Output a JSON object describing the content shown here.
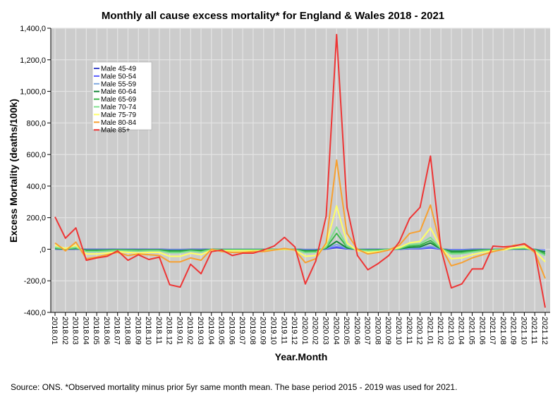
{
  "chart_data": {
    "type": "line",
    "title": "Monthly all cause excess mortality* for England & Wales 2018 - 2021",
    "xlabel": "Year.Month",
    "ylabel": "Excess Mortality (deaths/100k)",
    "ylim": [
      -400,
      1400
    ],
    "yticks": [
      "-400,0",
      "-200,0",
      ",0",
      "200,0",
      "400,0",
      "600,0",
      "800,0",
      "1,000,0",
      "1,200,0",
      "1,400,0"
    ],
    "ytick_values": [
      -400,
      -200,
      0,
      200,
      400,
      600,
      800,
      1000,
      1200,
      1400
    ],
    "grid": true,
    "legend_position": "top-left",
    "categories": [
      "2018.01",
      "2018.02",
      "2018.03",
      "2018.04",
      "2018.05",
      "2018.06",
      "2018.07",
      "2018.08",
      "2018.09",
      "2018.10",
      "2018.11",
      "2018.12",
      "2019.01",
      "2019.02",
      "2019.03",
      "2019.04",
      "2019.05",
      "2019.06",
      "2019.07",
      "2019.08",
      "2019.09",
      "2019.10",
      "2019.11",
      "2019.12",
      "2020.01",
      "2020.02",
      "2020.03",
      "2020.04",
      "2020.05",
      "2020.06",
      "2020.07",
      "2020.08",
      "2020.09",
      "2020.10",
      "2020.11",
      "2020.12",
      "2021.01",
      "2021.02",
      "2021.03",
      "2021.04",
      "2021.05",
      "2021.06",
      "2021.07",
      "2021.08",
      "2021.09",
      "2021.10",
      "2021.11",
      "2021.12"
    ],
    "series": [
      {
        "name": "Male 45-49",
        "color": "#3a44c8",
        "values": [
          1,
          0,
          1,
          -1,
          -1,
          -1,
          0,
          0,
          -1,
          0,
          0,
          -2,
          -2,
          -1,
          -1,
          0,
          0,
          0,
          0,
          0,
          0,
          0,
          0,
          0,
          -2,
          -2,
          1,
          10,
          2,
          0,
          0,
          0,
          0,
          0,
          3,
          3,
          8,
          0,
          -3,
          -3,
          -1,
          0,
          0,
          0,
          0,
          1,
          0,
          -15
        ]
      },
      {
        "name": "Male 50-54",
        "color": "#5a5cff",
        "values": [
          2,
          0,
          2,
          -2,
          -2,
          -2,
          -1,
          -1,
          -2,
          -1,
          -1,
          -3,
          -3,
          -2,
          -2,
          0,
          0,
          0,
          0,
          0,
          0,
          0,
          0,
          0,
          -3,
          -3,
          2,
          15,
          3,
          0,
          -1,
          -1,
          0,
          1,
          4,
          5,
          10,
          1,
          -4,
          -4,
          -2,
          -1,
          0,
          0,
          1,
          1,
          -1,
          -6
        ]
      },
      {
        "name": "Male 55-59",
        "color": "#7fa8e0",
        "values": [
          3,
          1,
          3,
          -4,
          -4,
          -3,
          -2,
          -2,
          -3,
          -2,
          -2,
          -5,
          -5,
          -3,
          -4,
          0,
          -1,
          -1,
          -1,
          -1,
          -1,
          0,
          0,
          0,
          -5,
          -5,
          4,
          30,
          5,
          -1,
          -2,
          -2,
          0,
          1,
          7,
          9,
          20,
          1,
          -7,
          -7,
          -4,
          -2,
          -1,
          0,
          1,
          2,
          -1,
          -10
        ]
      },
      {
        "name": "Male 60-64",
        "color": "#16863a",
        "values": [
          5,
          1,
          5,
          -6,
          -6,
          -5,
          -3,
          -4,
          -5,
          -4,
          -4,
          -9,
          -9,
          -5,
          -7,
          -1,
          -2,
          -2,
          -2,
          -2,
          -2,
          -1,
          0,
          -1,
          -9,
          -8,
          6,
          50,
          8,
          -2,
          -4,
          -3,
          -1,
          2,
          12,
          15,
          40,
          2,
          -12,
          -12,
          -7,
          -4,
          -2,
          -1,
          2,
          3,
          -2,
          -18
        ]
      },
      {
        "name": "Male 65-69",
        "color": "#3cb84a",
        "values": [
          8,
          2,
          8,
          -10,
          -10,
          -8,
          -5,
          -7,
          -8,
          -7,
          -7,
          -15,
          -15,
          -8,
          -12,
          -1,
          -3,
          -3,
          -3,
          -3,
          -3,
          -1,
          0,
          -1,
          -15,
          -14,
          10,
          100,
          14,
          -3,
          -7,
          -5,
          -1,
          3,
          20,
          25,
          55,
          3,
          -20,
          -20,
          -12,
          -7,
          -3,
          -1,
          3,
          5,
          -3,
          -30
        ]
      },
      {
        "name": "Male 70-74",
        "color": "#80e090",
        "values": [
          12,
          3,
          12,
          -15,
          -15,
          -12,
          -8,
          -10,
          -12,
          -10,
          -10,
          -22,
          -22,
          -12,
          -18,
          -2,
          -5,
          -5,
          -5,
          -5,
          -5,
          -2,
          0,
          -2,
          -22,
          -20,
          15,
          140,
          20,
          -5,
          -10,
          -8,
          -2,
          5,
          30,
          35,
          75,
          5,
          -30,
          -28,
          -18,
          -10,
          -5,
          -2,
          5,
          8,
          -5,
          -40
        ]
      },
      {
        "name": "Male 75-79",
        "color": "#ffff66",
        "values": [
          25,
          5,
          25,
          -30,
          -30,
          -25,
          -15,
          -20,
          -25,
          -20,
          -20,
          -45,
          -45,
          -25,
          -35,
          -5,
          -10,
          -10,
          -10,
          -10,
          -10,
          -5,
          0,
          -5,
          -45,
          -40,
          30,
          275,
          40,
          -10,
          -20,
          -15,
          -5,
          10,
          40,
          50,
          135,
          10,
          -60,
          -55,
          -35,
          -20,
          -10,
          -5,
          10,
          15,
          -10,
          -80
        ]
      },
      {
        "name": "Male 80-84",
        "color": "#f7a030",
        "values": [
          40,
          -10,
          45,
          -60,
          -50,
          -35,
          -20,
          -40,
          -30,
          -35,
          -40,
          -80,
          -80,
          -55,
          -70,
          0,
          -15,
          -20,
          -20,
          -15,
          -15,
          -5,
          5,
          -5,
          -85,
          -60,
          40,
          565,
          100,
          0,
          -30,
          -20,
          -5,
          25,
          100,
          115,
          280,
          15,
          -105,
          -85,
          -55,
          -35,
          -15,
          0,
          25,
          30,
          -20,
          -185
        ]
      },
      {
        "name": "Male 85+",
        "color": "#ee3535",
        "values": [
          205,
          70,
          135,
          -70,
          -55,
          -45,
          -10,
          -70,
          -35,
          -65,
          -50,
          -225,
          -240,
          -95,
          -155,
          -15,
          -5,
          -40,
          -25,
          -25,
          -5,
          20,
          75,
          15,
          -220,
          -75,
          210,
          1360,
          265,
          -40,
          -130,
          -90,
          -40,
          45,
          195,
          265,
          590,
          5,
          -245,
          -220,
          -125,
          -125,
          20,
          15,
          20,
          35,
          -10,
          -370
        ]
      }
    ]
  },
  "source_note": "Source: ONS. *Observed mortality minus prior 5yr same month mean. The base period 2015 - 2019 was used for 2021."
}
